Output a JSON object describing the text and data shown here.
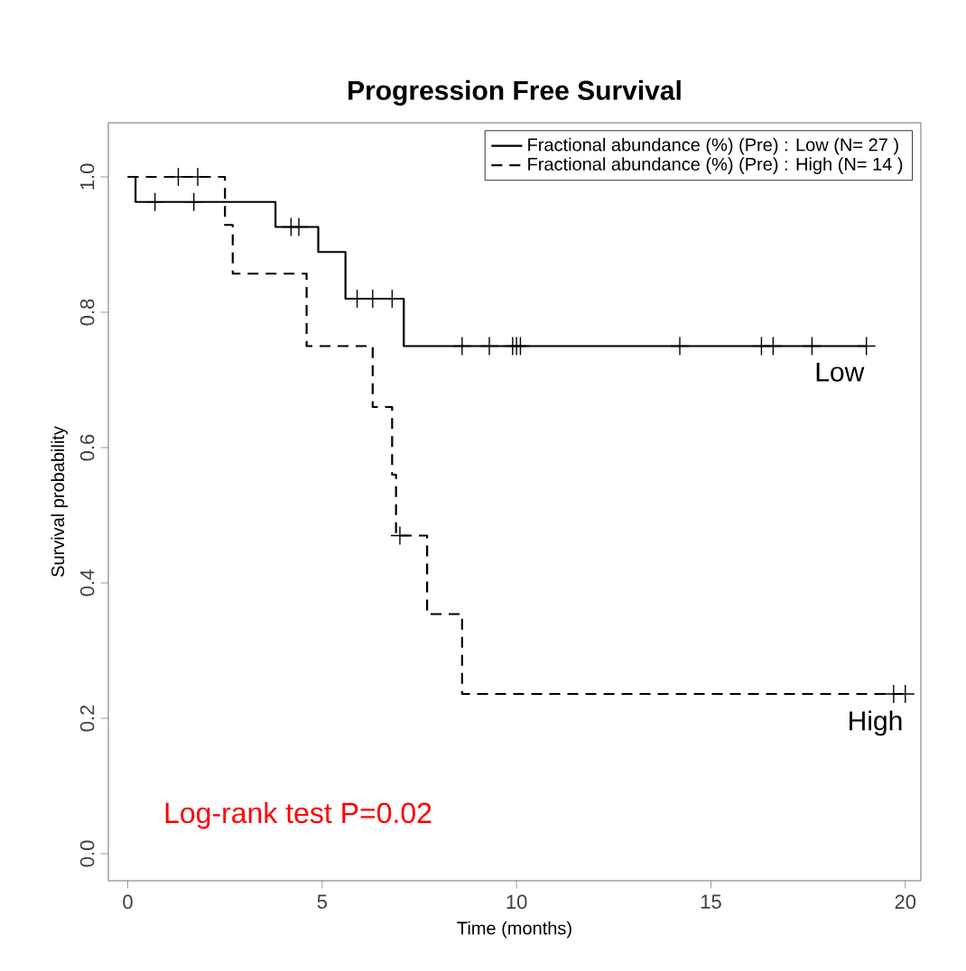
{
  "chart_data": {
    "type": "step",
    "title": "Progression Free Survival",
    "xlabel": "Time (months)",
    "ylabel": "Survival probability",
    "xlim": [
      -0.5,
      20.4
    ],
    "ylim": [
      -0.04,
      1.08
    ],
    "xticks": [
      0,
      5,
      10,
      15,
      20
    ],
    "yticks": [
      {
        "value": 0,
        "label": "0.0"
      },
      0.2,
      0.4,
      0.6,
      0.8,
      {
        "value": 1,
        "label": "1.0"
      }
    ],
    "legend": "top right",
    "grid": false,
    "series": [
      {
        "name": "Fractional abundance (%) (Pre) : Low   (N= 27 )",
        "color": "#000000",
        "line_style": "solid",
        "marker": "none",
        "x": [
          0,
          0.2,
          3.8,
          4.9,
          5.6,
          7.1,
          19.0
        ],
        "values": [
          1.0,
          0.963,
          0.926,
          0.889,
          0.82,
          0.75,
          0.75
        ]
      },
      {
        "name": "Fractional abundance (%) (Pre) : High  (N= 14 )",
        "color": "#000000",
        "line_style": "dashed",
        "marker": "none",
        "x": [
          0,
          2.5,
          2.7,
          4.6,
          6.3,
          6.8,
          6.9,
          7.7,
          8.6,
          20.0
        ],
        "values": [
          1.0,
          0.929,
          0.857,
          0.75,
          0.66,
          0.56,
          0.47,
          0.354,
          0.236,
          0.236
        ]
      },
      {
        "type": "scatter",
        "color": "#000000",
        "marker": "cross",
        "x": [
          0.7,
          1.7,
          4.2,
          4.4,
          5.9,
          6.3,
          6.8,
          8.6,
          9.3,
          9.9,
          10.0,
          10.1,
          14.2,
          16.3,
          16.6,
          17.6,
          19.0
        ],
        "values": [
          0.963,
          0.963,
          0.926,
          0.926,
          0.82,
          0.82,
          0.82,
          0.75,
          0.75,
          0.75,
          0.75,
          0.75,
          0.75,
          0.75,
          0.75,
          0.75,
          0.75
        ]
      },
      {
        "type": "scatter",
        "color": "#000000",
        "marker": "cross",
        "x": [
          1.3,
          1.8,
          7.0,
          19.7,
          20.0
        ],
        "values": [
          1.0,
          1.0,
          0.47,
          0.236,
          0.236
        ]
      }
    ],
    "annotations": [
      {
        "text": "Low",
        "x": 19.0,
        "y": 0.75
      },
      {
        "text": "High",
        "x": 20.0,
        "y": 0.236
      },
      "Log-rank test P=0.02"
    ]
  }
}
